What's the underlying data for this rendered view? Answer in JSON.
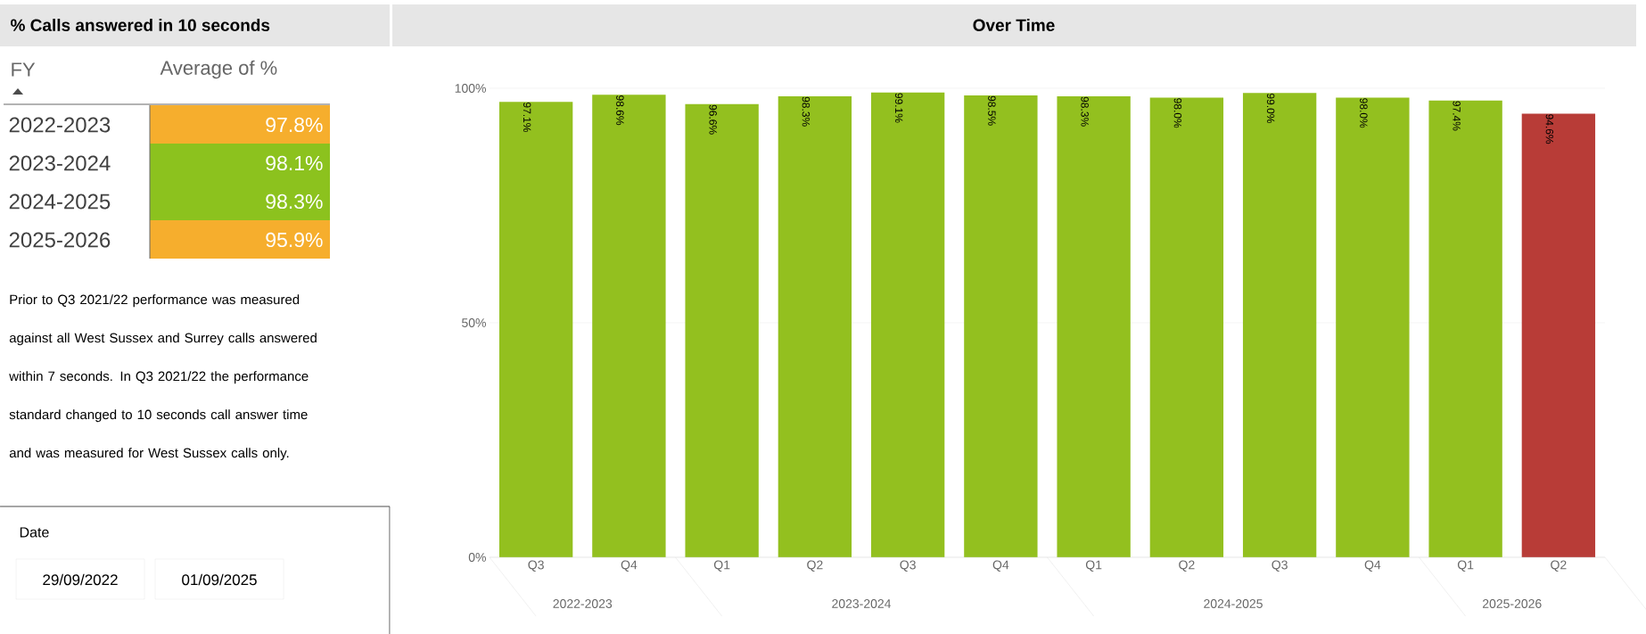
{
  "chart_data": [
    {
      "type": "other",
      "title": "% Calls answered in 10 seconds",
      "xlabel": "FY",
      "ylabel": "Average of %",
      "categories": [
        "2022-2023",
        "2023-2024",
        "2024-2025",
        "2025-2026"
      ],
      "value_labels": [
        "97.8%",
        "98.1%",
        "98.3%",
        "95.9%"
      ],
      "colors": [
        "#f6ae2d",
        "#8cc21e",
        "#8cc21e",
        "#f6ae2d"
      ],
      "annotations": [
        "Prior to Q3 2021/22 performance was measured against all West Sussex and Surrey calls answered within 7 seconds. In Q3 2021/22 the performance standard changed to 10 seconds call answer time and was measured for West Sussex calls only.",
        "Date",
        "29/09/2022",
        "01/09/2025"
      ]
    },
    {
      "type": "bar",
      "title": "Over Time",
      "categories": [
        "Q3",
        "Q4",
        "Q1",
        "Q2",
        "Q3",
        "Q4",
        "Q1",
        "Q2",
        "Q3",
        "Q4",
        "Q1",
        "Q2"
      ],
      "values": [
        97.1,
        98.6,
        96.6,
        98.3,
        99.1,
        98.5,
        98.3,
        98.0,
        99.0,
        98.0,
        97.4,
        94.6
      ],
      "value_labels": [
        "97.1%",
        "98.6%",
        "96.6%",
        "98.3%",
        "99.1%",
        "98.5%",
        "98.3%",
        "98.0%",
        "99.0%",
        "98.0%",
        "97.4%",
        "94.6%"
      ],
      "colors": [
        "#93c01f",
        "#93c01f",
        "#93c01f",
        "#93c01f",
        "#93c01f",
        "#93c01f",
        "#93c01f",
        "#93c01f",
        "#93c01f",
        "#93c01f",
        "#93c01f",
        "#b83c37"
      ],
      "ylim": [
        0,
        100
      ],
      "yticks": [
        {
          "value": 0,
          "label": "0%"
        },
        {
          "value": 50,
          "label": "50%"
        },
        {
          "value": 100,
          "label": "100%"
        }
      ],
      "grid": "y",
      "annotations": [
        "2022-2023",
        "2023-2024",
        "2024-2025",
        "2025-2026"
      ]
    }
  ]
}
